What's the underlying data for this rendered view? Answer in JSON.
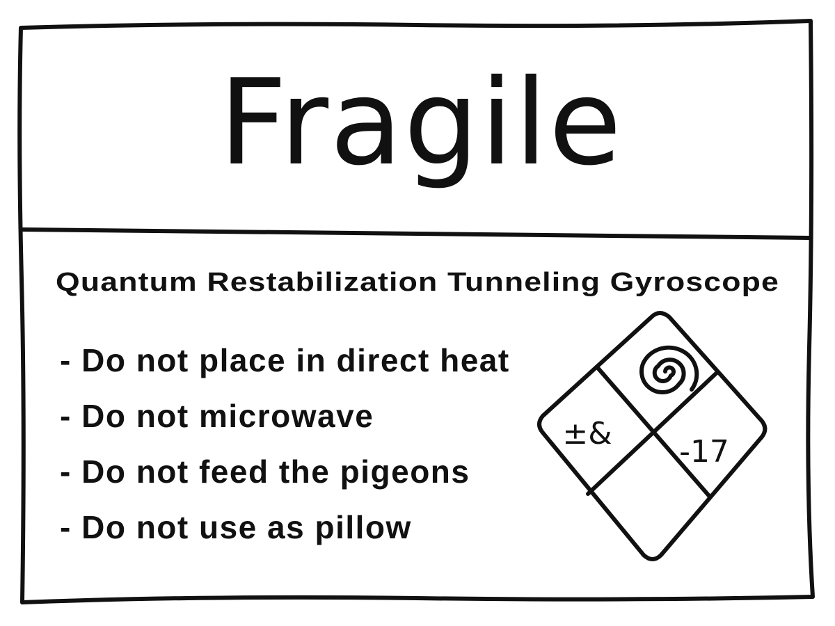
{
  "label": {
    "title": "Fragile",
    "product_name": "Quantum Restabilization Tunneling Gyroscope",
    "instructions": [
      "- Do not place in direct heat",
      "- Do not microwave",
      "- Do not feed the pigeons",
      "- Do not use as pillow"
    ],
    "symbol_grid": {
      "top_right_icon": "spiral-icon",
      "left_text": "±&",
      "right_text": "-17",
      "bottom_cell": ""
    }
  },
  "colors": {
    "ink": "#111111",
    "paper": "#ffffff"
  }
}
